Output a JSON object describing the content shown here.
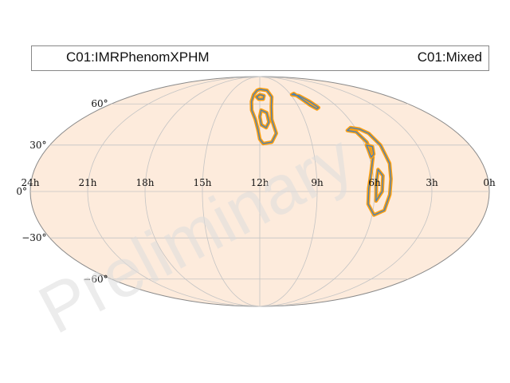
{
  "chart_data": {
    "type": "sky map contour",
    "projection": "mollweide",
    "ra_ticks": [
      "24h",
      "21h",
      "18h",
      "15h",
      "12h",
      "9h",
      "6h",
      "3h",
      "0h"
    ],
    "dec_ticks": [
      "60°",
      "30°",
      "0°",
      "−30°",
      "−60°"
    ],
    "grid": true,
    "series": [
      {
        "name": "C01:IMRPhenomXPHM",
        "color": "#1f77b4"
      },
      {
        "name": "C01:Mixed",
        "color": "#ff9f10"
      }
    ],
    "regions": [
      {
        "id": "upper-center",
        "outline": [
          [
            12.0,
            73
          ],
          [
            11.2,
            72
          ],
          [
            10.9,
            66
          ],
          [
            11.1,
            58
          ],
          [
            11.2,
            48
          ],
          [
            11.0,
            38
          ],
          [
            11.3,
            32
          ],
          [
            11.8,
            31
          ],
          [
            12.0,
            34
          ],
          [
            12.1,
            40
          ],
          [
            12.3,
            48
          ],
          [
            12.6,
            55
          ],
          [
            12.7,
            62
          ],
          [
            12.6,
            68
          ],
          [
            12.3,
            72
          ]
        ]
      },
      {
        "id": "upper-center-inner-top",
        "outline": [
          [
            12.0,
            68
          ],
          [
            11.6,
            67
          ],
          [
            11.7,
            64
          ],
          [
            12.1,
            64
          ],
          [
            12.3,
            66
          ]
        ]
      },
      {
        "id": "upper-center-inner-bottom",
        "outline": [
          [
            11.9,
            55
          ],
          [
            11.5,
            53
          ],
          [
            11.4,
            46
          ],
          [
            11.6,
            42
          ],
          [
            11.9,
            44
          ],
          [
            12.0,
            50
          ]
        ]
      },
      {
        "id": "upper-right",
        "outline": [
          [
            8.9,
            68
          ],
          [
            8.6,
            69
          ],
          [
            8.3,
            64
          ],
          [
            8.0,
            59
          ],
          [
            7.7,
            56
          ],
          [
            7.5,
            57
          ],
          [
            7.8,
            62
          ],
          [
            8.3,
            67
          ]
        ]
      },
      {
        "id": "right-main",
        "outline": [
          [
            6.6,
            40
          ],
          [
            6.1,
            39
          ],
          [
            5.8,
            32
          ],
          [
            5.8,
            22
          ],
          [
            6.1,
            12
          ],
          [
            6.3,
            2
          ],
          [
            6.3,
            -8
          ],
          [
            5.9,
            -15
          ],
          [
            5.4,
            -12
          ],
          [
            5.2,
            -2
          ],
          [
            5.1,
            8
          ],
          [
            5.0,
            18
          ],
          [
            5.1,
            30
          ],
          [
            5.4,
            38
          ],
          [
            5.8,
            41
          ],
          [
            6.3,
            42
          ]
        ]
      },
      {
        "id": "right-inner-top",
        "outline": [
          [
            5.9,
            30
          ],
          [
            5.6,
            29
          ],
          [
            5.7,
            24
          ],
          [
            5.9,
            22
          ],
          [
            5.9,
            27
          ]
        ]
      },
      {
        "id": "right-inner-bottom",
        "outline": [
          [
            5.7,
            14
          ],
          [
            5.5,
            10
          ],
          [
            5.6,
            0
          ],
          [
            5.9,
            -6
          ],
          [
            5.9,
            4
          ],
          [
            5.8,
            10
          ]
        ]
      }
    ]
  },
  "legend": {
    "left_label": "C01:IMRPhenomXPHM",
    "right_label": "C01:Mixed"
  },
  "watermark": "Preliminary",
  "colors": {
    "map_fill": "#fdebdc",
    "map_border": "#8a8a8a",
    "grid": "#c4c4c4",
    "contour_outer": "#ff9f10",
    "contour_inner": "#4a82b5",
    "watermark": "#dcdcdc"
  }
}
